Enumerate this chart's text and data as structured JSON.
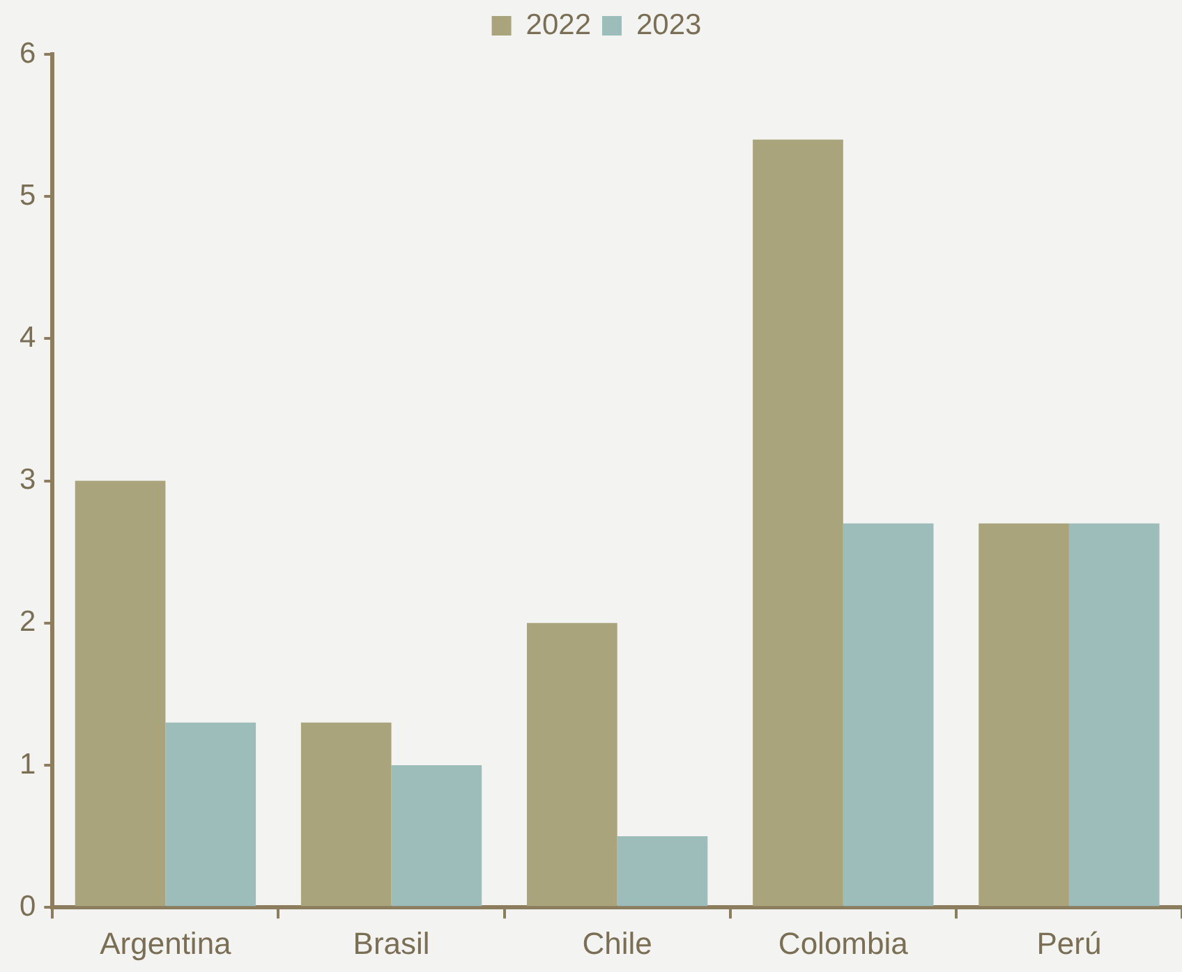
{
  "chart_data": {
    "type": "bar",
    "categories": [
      "Argentina",
      "Brasil",
      "Chile",
      "Colombia",
      "Perú"
    ],
    "series": [
      {
        "name": "2022",
        "color": "#a9a47b",
        "values": [
          3.0,
          1.3,
          2.0,
          5.4,
          2.7
        ]
      },
      {
        "name": "2023",
        "color": "#9dbdbb",
        "values": [
          1.3,
          1.0,
          0.5,
          2.7,
          2.7
        ]
      }
    ],
    "ylim": [
      0,
      6
    ],
    "yticks": [
      0,
      1,
      2,
      3,
      4,
      5,
      6
    ],
    "grid": false,
    "legend": "top"
  }
}
